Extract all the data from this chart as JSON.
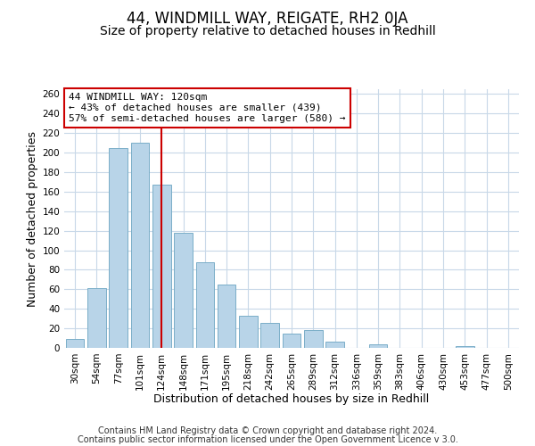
{
  "title": "44, WINDMILL WAY, REIGATE, RH2 0JA",
  "subtitle": "Size of property relative to detached houses in Redhill",
  "xlabel": "Distribution of detached houses by size in Redhill",
  "ylabel": "Number of detached properties",
  "footer_lines": [
    "Contains HM Land Registry data © Crown copyright and database right 2024.",
    "Contains public sector information licensed under the Open Government Licence v 3.0."
  ],
  "categories": [
    "30sqm",
    "54sqm",
    "77sqm",
    "101sqm",
    "124sqm",
    "148sqm",
    "171sqm",
    "195sqm",
    "218sqm",
    "242sqm",
    "265sqm",
    "289sqm",
    "312sqm",
    "336sqm",
    "359sqm",
    "383sqm",
    "406sqm",
    "430sqm",
    "453sqm",
    "477sqm",
    "500sqm"
  ],
  "values": [
    9,
    61,
    205,
    210,
    167,
    118,
    88,
    65,
    33,
    26,
    15,
    18,
    6,
    0,
    4,
    0,
    0,
    0,
    2,
    0,
    0
  ],
  "bar_color": "#b8d4e8",
  "bar_edge_color": "#7aaec8",
  "highlight_index": 4,
  "highlight_line_color": "#cc0000",
  "annotation_text": "44 WINDMILL WAY: 120sqm\n← 43% of detached houses are smaller (439)\n57% of semi-detached houses are larger (580) →",
  "annotation_box_edge_color": "#cc0000",
  "ylim": [
    0,
    265
  ],
  "yticks": [
    0,
    20,
    40,
    60,
    80,
    100,
    120,
    140,
    160,
    180,
    200,
    220,
    240,
    260
  ],
  "background_color": "#ffffff",
  "grid_color": "#c8d8e8",
  "title_fontsize": 12,
  "subtitle_fontsize": 10,
  "axis_label_fontsize": 9,
  "tick_fontsize": 7.5,
  "annotation_fontsize": 8,
  "footer_fontsize": 7
}
